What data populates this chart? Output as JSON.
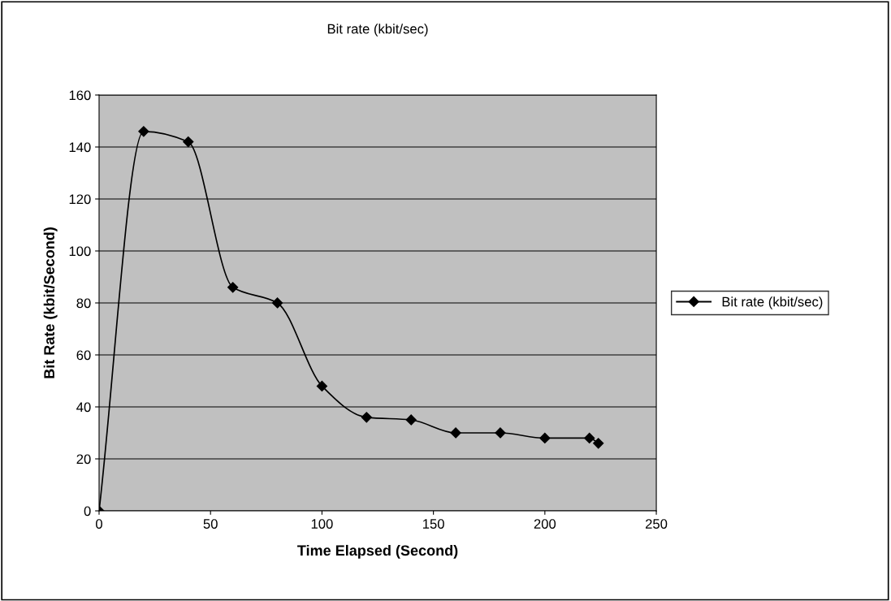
{
  "chart_data": {
    "type": "line",
    "title": "Bit rate (kbit/sec)",
    "xlabel": "Time Elapsed (Second)",
    "ylabel": "Bit Rate (kbit/Second)",
    "x": [
      0,
      20,
      40,
      60,
      80,
      100,
      120,
      140,
      160,
      180,
      200,
      220,
      224
    ],
    "series": [
      {
        "name": "Bit rate (kbit/sec)",
        "color": "#000000",
        "values": [
          0,
          146,
          142,
          86,
          80,
          48,
          36,
          35,
          30,
          30,
          28,
          28,
          26
        ]
      }
    ],
    "xlim": [
      0,
      250
    ],
    "xticks": [
      0,
      50,
      100,
      150,
      200,
      250
    ],
    "ylim": [
      0,
      160
    ],
    "yticks": [
      0,
      20,
      40,
      60,
      80,
      100,
      120,
      140,
      160
    ],
    "grid": "y",
    "legend": "right",
    "marker": "diamond",
    "line_style": "solid"
  }
}
